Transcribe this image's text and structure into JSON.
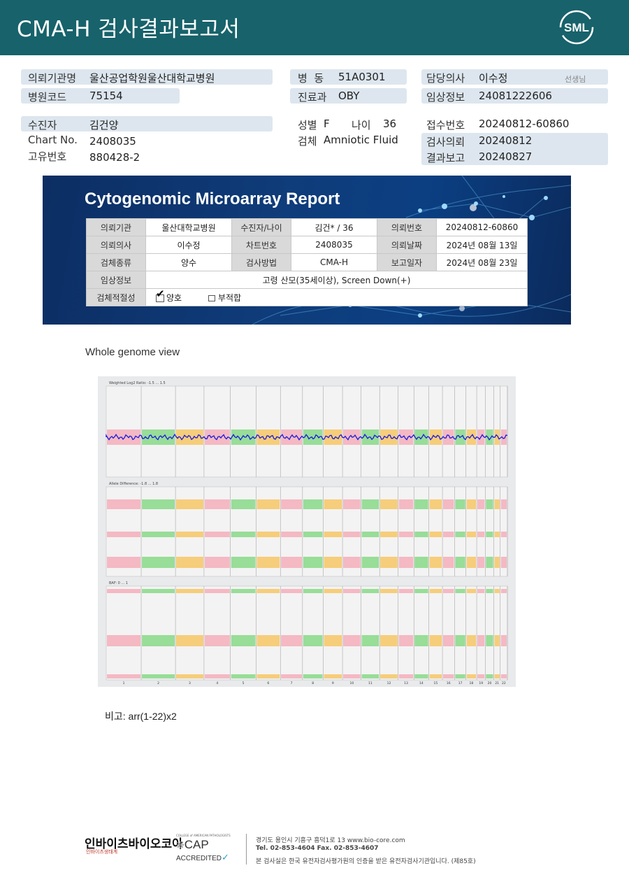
{
  "header": {
    "title": "CMA-H 검사결과보고서",
    "logo_text": "SML"
  },
  "info": {
    "requesting_institution": {
      "label": "의뢰기관명",
      "value": "울산공업학원울산대학교병원"
    },
    "hospital_code": {
      "label": "병원코드",
      "value": "75154"
    },
    "ward": {
      "label": "병  동",
      "value": "51A0301"
    },
    "department": {
      "label": "진료과",
      "value": "OBY"
    },
    "doctor": {
      "label": "담당의사",
      "value": "이수정",
      "suffix": "선생님"
    },
    "clinical_info": {
      "label": "임상정보",
      "value": "24081222606"
    },
    "patient": {
      "label": "수진자",
      "value": "김건양"
    },
    "chart_no": {
      "label": "Chart No.",
      "value": "2408035"
    },
    "unique_no": {
      "label": "고유번호",
      "value": "880428-2"
    },
    "sex": {
      "label": "성별",
      "value": "F"
    },
    "age": {
      "label": "나이",
      "value": "36"
    },
    "specimen": {
      "label": "검체",
      "value": "Amniotic Fluid"
    },
    "receipt_no": {
      "label": "접수번호",
      "value": "20240812-60860"
    },
    "test_request": {
      "label": "검사의뢰",
      "value": "20240812"
    },
    "result_report": {
      "label": "결과보고",
      "value": "20240827"
    }
  },
  "report": {
    "title": "Cytogenomic Microarray Report",
    "rows": [
      [
        "의뢰기관",
        "울산대학교병원",
        "수진자/나이",
        "김건* / 36",
        "의뢰번호",
        "20240812-60860"
      ],
      [
        "의뢰의사",
        "이수정",
        "차트번호",
        "2408035",
        "의뢰날짜",
        "2024년 08월 13일"
      ],
      [
        "검체종류",
        "양수",
        "검사방법",
        "CMA-H",
        "보고일자",
        "2024년 08월 23일"
      ]
    ],
    "clinical_label": "임상정보",
    "clinical_value": "고령 산모(35세이상), Screen Down(+)",
    "adequacy_label": "검체적절성",
    "adequate": "양호",
    "inadequate": "부적합"
  },
  "genome": {
    "heading": "Whole genome view",
    "panel1_title": "Weighted Log2 Ratio: -1.5 ... 1.5",
    "panel2_title": "Allele Difference: -1.8 ... 1.8",
    "panel3_title": "BAF: 0 ... 1",
    "chromosomes": [
      "1",
      "2",
      "3",
      "4",
      "5",
      "6",
      "7",
      "8",
      "9",
      "10",
      "11",
      "12",
      "13",
      "14",
      "15",
      "16",
      "17",
      "18",
      "19",
      "20",
      "21",
      "22"
    ],
    "colors": {
      "pink": "#f4a6b3",
      "green": "#7ad67a",
      "orange": "#f7c052",
      "blue": "#1a1adf"
    }
  },
  "remark": "비고: arr(1-22)x2",
  "footer": {
    "company": "인바이츠바이오코아",
    "company_sub": "인바이츠생태계",
    "address": "경기도 용인시 기흥구 흥덕1로 13   www.bio-core.com",
    "tel": "Tel. 02-853-4604   Fax. 02-853-4607",
    "notice": "본 검사실은 한국 유전자검사평가원의 인증을 받은 유전자검사기관입니다. (제85호)",
    "cap_top": "COLLEGE of AMERICAN PATHOLOGISTS",
    "cap": "CAP",
    "cap_accredited": "ACCREDITED"
  }
}
